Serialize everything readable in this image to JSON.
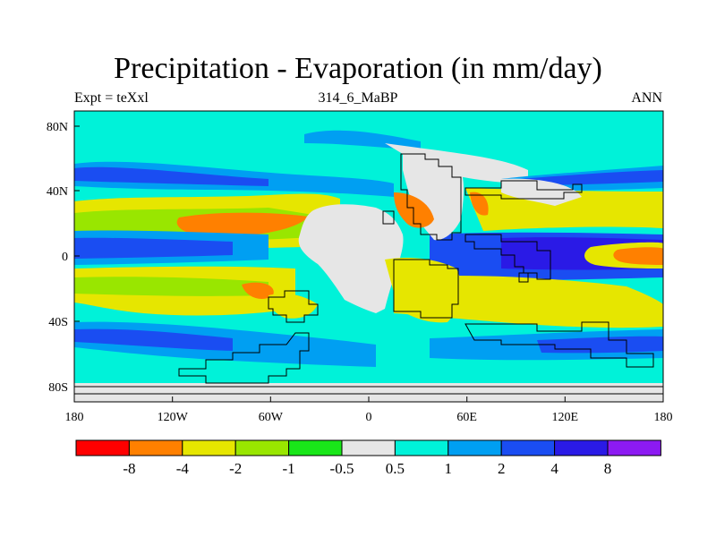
{
  "header": {
    "title": "Precipitation - Evaporation (in mm/day)",
    "left": "Expt = teXxl",
    "center": "314_6_MaBP",
    "right": "ANN"
  },
  "axes": {
    "x_ticks": [
      "180",
      "120W",
      "60W",
      "0",
      "60E",
      "120E",
      "180"
    ],
    "y_ticks": [
      "80N",
      "40N",
      "0",
      "40S",
      "80S"
    ]
  },
  "colorbar": {
    "labels": [
      "-8",
      "-4",
      "-2",
      "-1",
      "-0.5",
      "0.5",
      "1",
      "2",
      "4",
      "8"
    ],
    "colors": [
      "#ff0000",
      "#ff8000",
      "#e6e600",
      "#99e600",
      "#19e619",
      "#e6e6e6",
      "#00f2d9",
      "#009ff2",
      "#1a4df2",
      "#2a1ae6",
      "#8c1af2"
    ]
  },
  "map_colors": {
    "neutral": "#e6e6e6",
    "light_cyan": "#00f2d9",
    "cyan": "#009ff2",
    "blue": "#1a4df2",
    "dark_blue": "#2a1ae6",
    "yellow": "#e6e600",
    "lime": "#99e600",
    "green": "#19e619",
    "orange": "#ff8000"
  }
}
